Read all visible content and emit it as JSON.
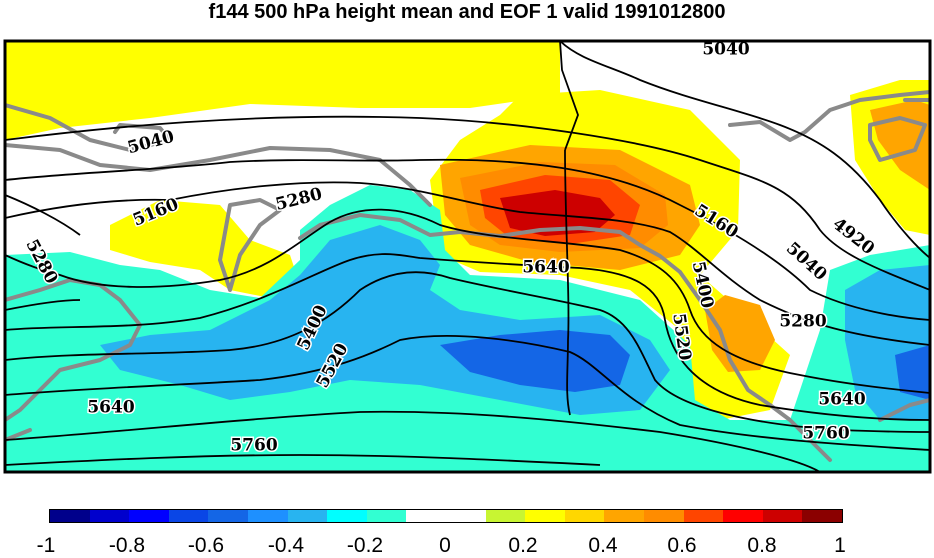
{
  "title": "f144 500 hPa height mean and EOF 1 valid 1991012800",
  "colorbar": {
    "colors": [
      "#00008b",
      "#0000cd",
      "#0000ff",
      "#0a46e6",
      "#1466e6",
      "#1e90ff",
      "#28b4f0",
      "#00ffff",
      "#32ffd2",
      "#ffffff",
      "#ffffff",
      "#c8f532",
      "#ffff00",
      "#ffd700",
      "#ffa500",
      "#ff8c00",
      "#ff4500",
      "#ff0000",
      "#cd0000",
      "#8b0000"
    ],
    "tick_labels": [
      "-1",
      "-0.8",
      "-0.6",
      "-0.4",
      "-0.2",
      "0",
      "0.2",
      "0.4",
      "0.6",
      "0.8",
      "1"
    ]
  },
  "contour_labels": [
    "5040",
    "5040",
    "5160",
    "5160",
    "4920",
    "5040",
    "5280",
    "5280",
    "5280",
    "5400",
    "5520",
    "5400",
    "5640",
    "5520",
    "5640",
    "5640",
    "5760",
    "5760"
  ],
  "colors": {
    "coast": "#8a8a8a",
    "contour": "#000000",
    "frame": "#000000"
  }
}
